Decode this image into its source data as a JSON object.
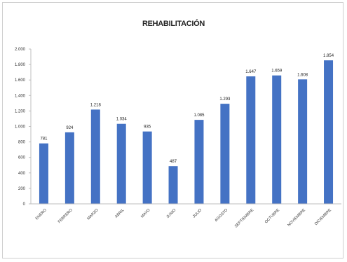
{
  "chart_data": {
    "type": "bar",
    "title": "REHABILITACIÓN",
    "categories": [
      "ENERO",
      "FEBRERO",
      "MARZO",
      "ABRIL",
      "MAYO",
      "JUNIO",
      "JULIO",
      "AGOSTO",
      "SEPTIEMBRE",
      "OCTUBRE",
      "NOVIEMBRE",
      "DICIEMBRE"
    ],
    "values": [
      781,
      924,
      1218,
      1034,
      935,
      487,
      1085,
      1293,
      1647,
      1659,
      1608,
      1854
    ],
    "data_labels": [
      "781",
      "924",
      "1.218",
      "1.034",
      "935",
      "487",
      "1.085",
      "1.293",
      "1.647",
      "1.659",
      "1.608",
      "1.854"
    ],
    "yticks": [
      0,
      200,
      400,
      600,
      800,
      1000,
      1200,
      1400,
      1600,
      1800,
      2000
    ],
    "ytick_labels": [
      "0",
      "200",
      "400",
      "600",
      "800",
      "1.000",
      "1.200",
      "1.400",
      "1.600",
      "1.800",
      "2.000"
    ],
    "ylim": [
      0,
      2000
    ],
    "xlabel": "",
    "ylabel": "",
    "grid": false,
    "legend": "none",
    "colors": {
      "bar": "#4472c4",
      "axis": "#bfbfbf"
    }
  }
}
